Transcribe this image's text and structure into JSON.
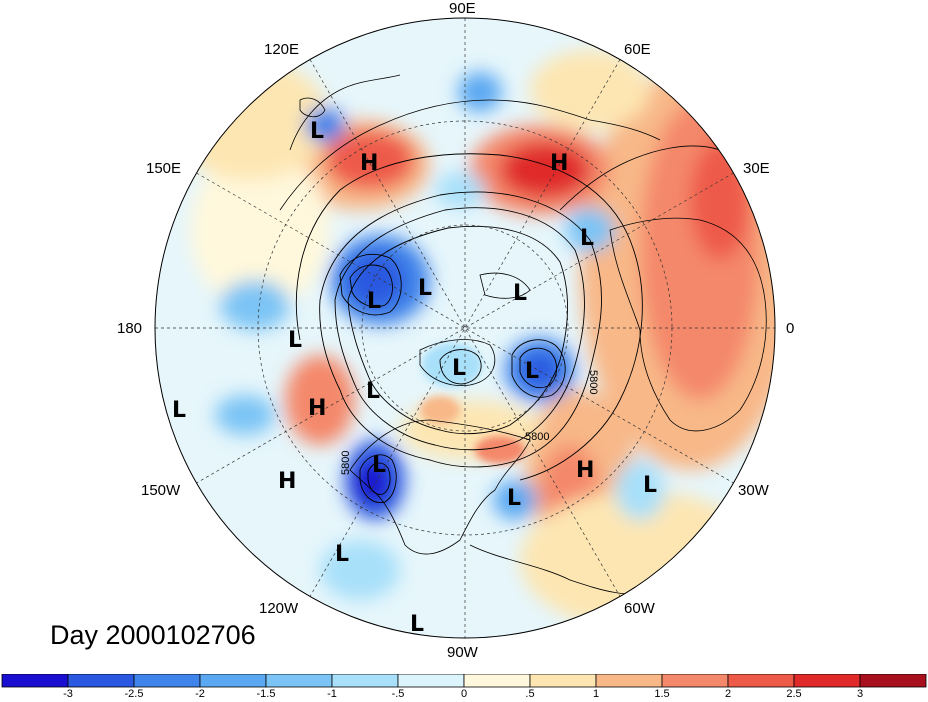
{
  "longitude_labels": {
    "e90": "90E",
    "e60": "60E",
    "e30": "30E",
    "e0": "0",
    "w30": "30W",
    "w60": "60W",
    "w90": "90W",
    "w120": "120W",
    "w150": "150W",
    "e180": "180",
    "e150": "150E",
    "e120": "120E"
  },
  "pressure_systems": [
    {
      "type": "L"
    },
    {
      "type": "H"
    },
    {
      "type": "H"
    },
    {
      "type": "L"
    },
    {
      "type": "L"
    },
    {
      "type": "L"
    },
    {
      "type": "L"
    },
    {
      "type": "L"
    },
    {
      "type": "L"
    },
    {
      "type": "L"
    },
    {
      "type": "L"
    },
    {
      "type": "H"
    },
    {
      "type": "L"
    },
    {
      "type": "H"
    },
    {
      "type": "L"
    },
    {
      "type": "H"
    },
    {
      "type": "L"
    },
    {
      "type": "L"
    },
    {
      "type": "L"
    }
  ],
  "contour_labels": [
    "5800",
    "5800",
    "5800"
  ],
  "title": "Day 2000102706",
  "colorbar": {
    "colors": [
      "#1a0fd0",
      "#2a58e0",
      "#3f84ea",
      "#5aa8f2",
      "#7cc4f5",
      "#a8e0fa",
      "#dcf4fc",
      "#fff8dc",
      "#fde6b2",
      "#f8b888",
      "#f4886a",
      "#ee5a48",
      "#e02a2a",
      "#a8101e"
    ],
    "ticks": [
      "-3",
      "-2.5",
      "-2",
      "-1.5",
      "-1",
      "-.5",
      "0",
      ".5",
      "1",
      "1.5",
      "2",
      "2.5",
      "3"
    ]
  }
}
